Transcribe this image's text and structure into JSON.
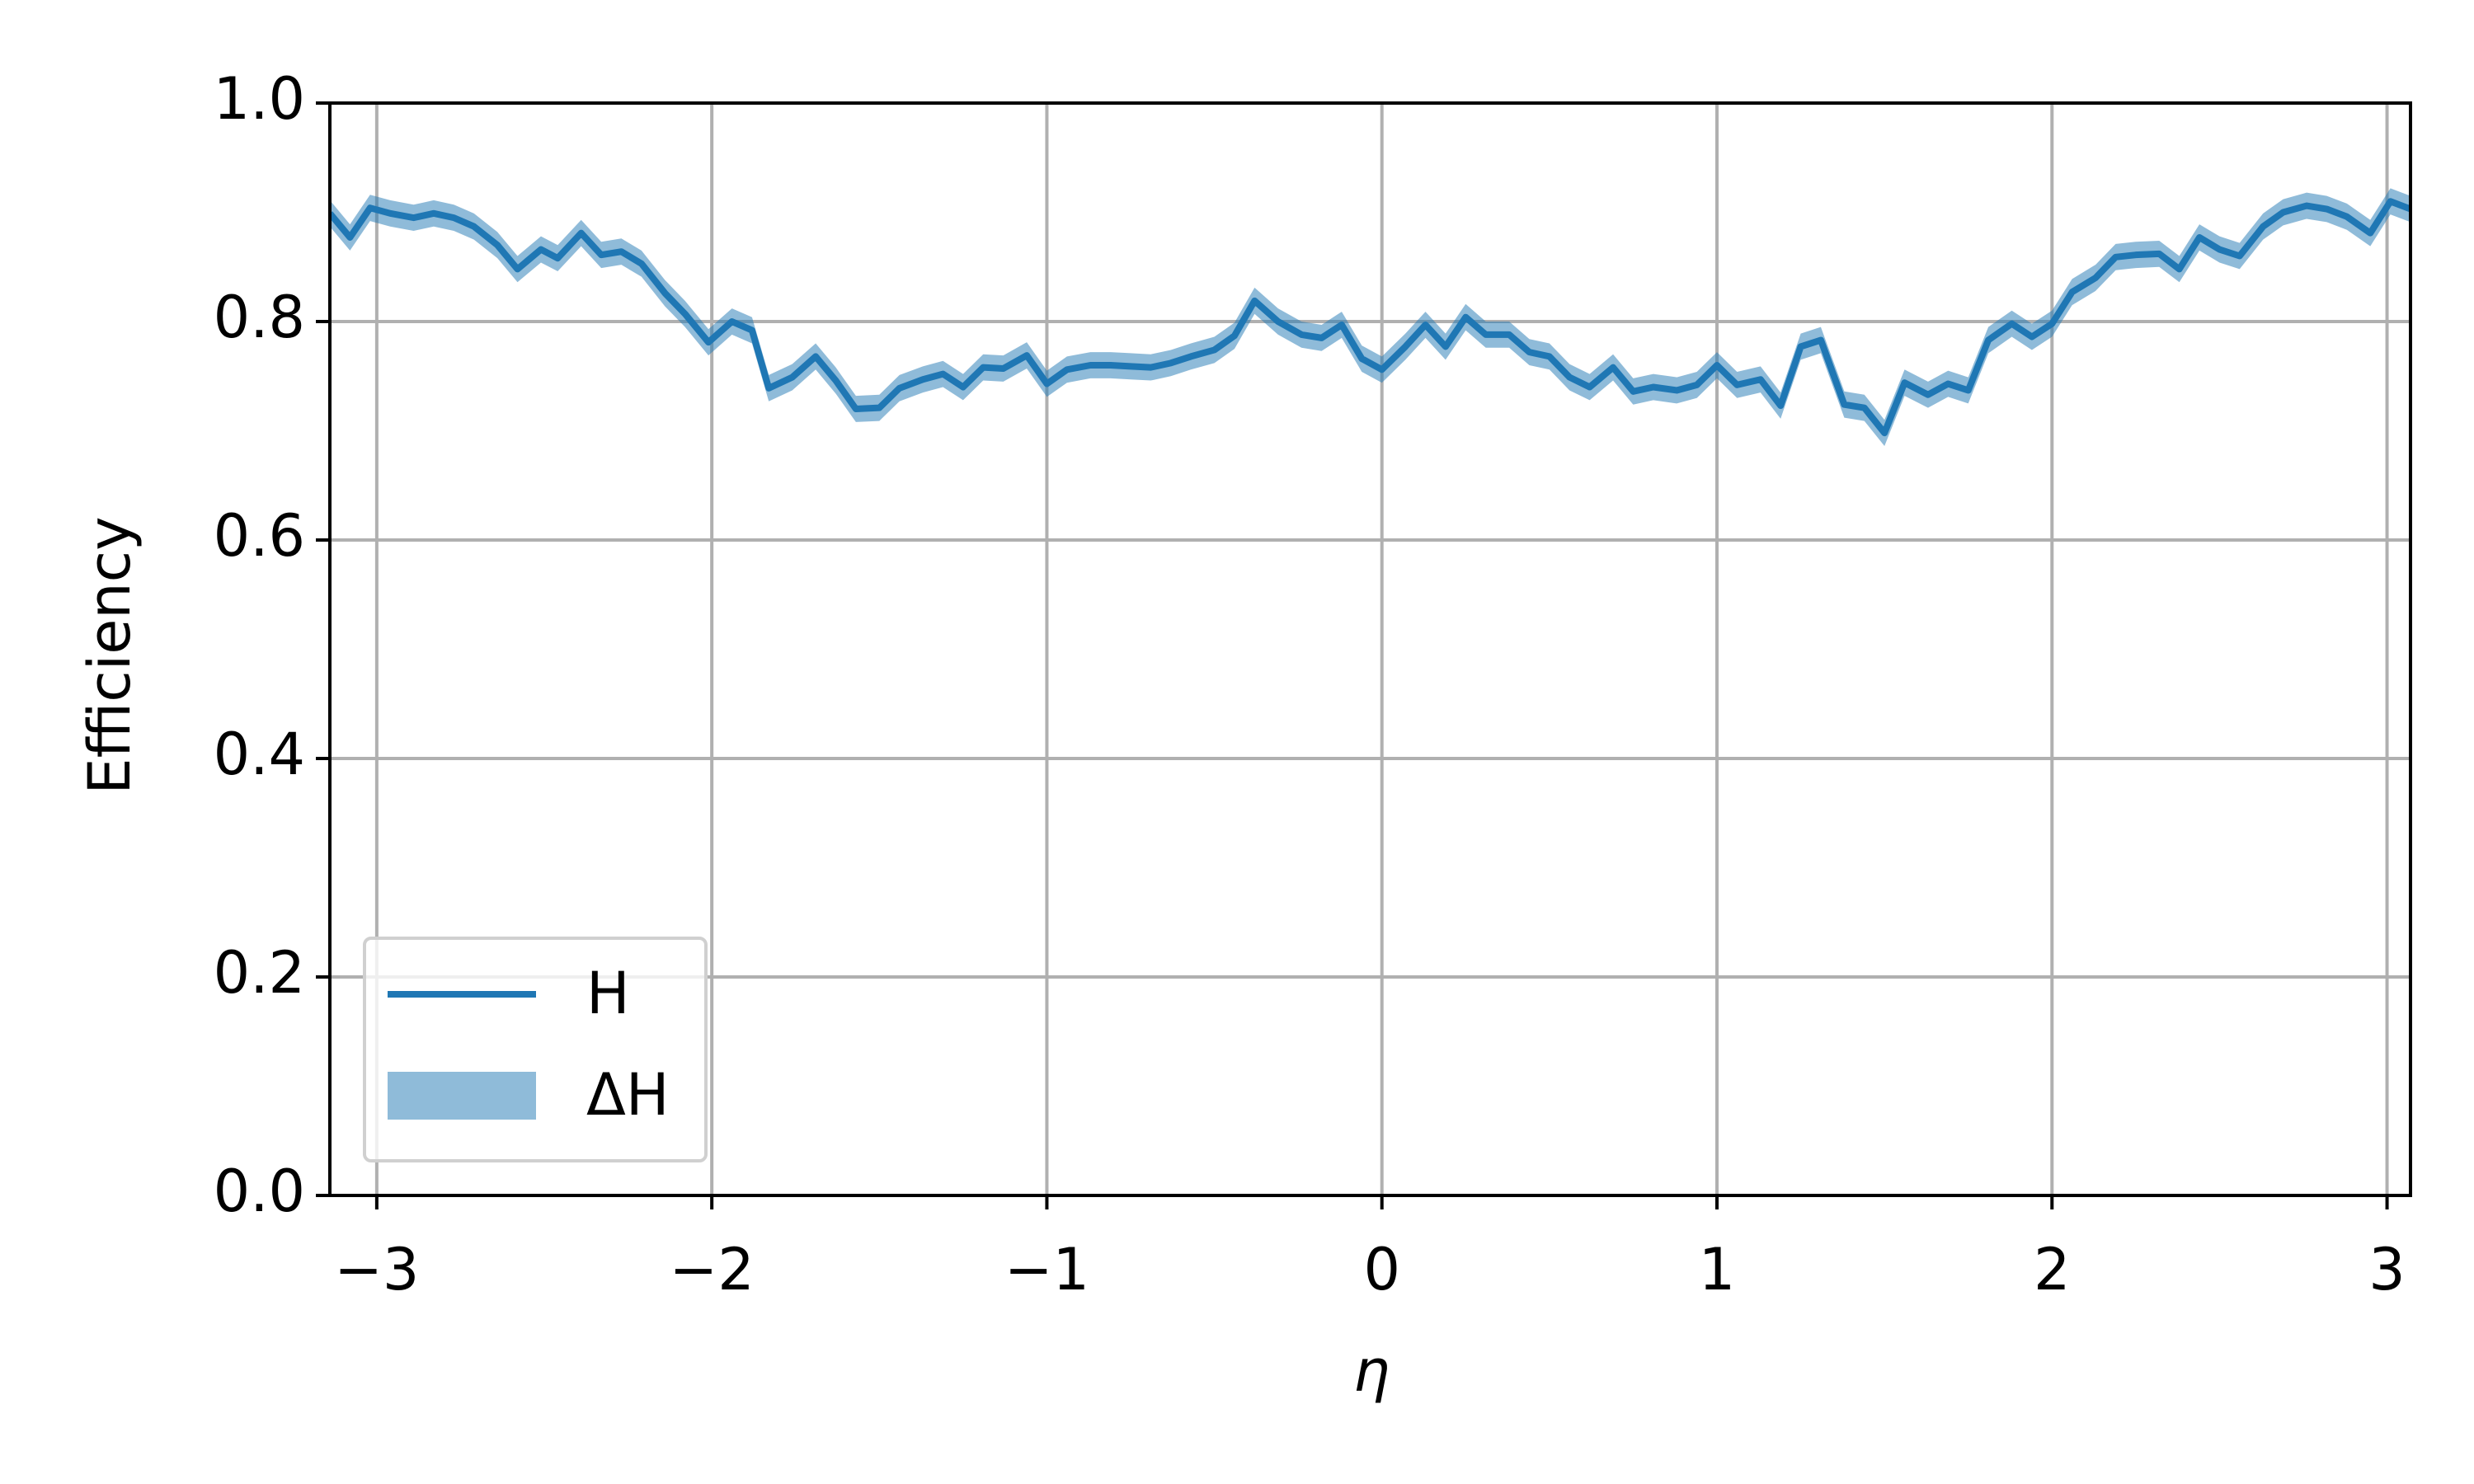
{
  "chart_data": {
    "type": "line",
    "xlabel": "η",
    "ylabel": "Efficiency",
    "xlim": [
      -3.14,
      3.07
    ],
    "ylim": [
      0,
      1
    ],
    "xticks": [
      -3,
      -2,
      -1,
      0,
      1,
      2,
      3
    ],
    "xtick_labels": [
      "−3",
      "−2",
      "−1",
      "0",
      "1",
      "2",
      "3"
    ],
    "yticks": [
      {
        "value": 0,
        "label": "0.0"
      },
      0.2,
      0.4,
      0.6,
      0.8,
      {
        "value": 1,
        "label": "1.0"
      }
    ],
    "grid": true,
    "legend": "lower left",
    "x": [
      -3.14,
      -3.08,
      -3.02,
      -2.96,
      -2.89,
      -2.83,
      -2.77,
      -2.71,
      -2.64,
      -2.58,
      -2.51,
      -2.46,
      -2.39,
      -2.33,
      -2.27,
      -2.21,
      -2.14,
      -2.08,
      -2.01,
      -1.94,
      -1.88,
      -1.83,
      -1.76,
      -1.69,
      -1.63,
      -1.57,
      -1.5,
      -1.44,
      -1.37,
      -1.31,
      -1.25,
      -1.19,
      -1.13,
      -1.06,
      -1,
      -0.94,
      -0.87,
      -0.81,
      -0.75,
      -0.69,
      -0.63,
      -0.57,
      -0.5,
      -0.44,
      -0.38,
      -0.31,
      -0.24,
      -0.18,
      -0.12,
      -0.06,
      0,
      0.07,
      0.13,
      0.19,
      0.25,
      0.31,
      0.38,
      0.44,
      0.5,
      0.56,
      0.62,
      0.69,
      0.75,
      0.81,
      0.88,
      0.94,
      1,
      1.06,
      1.13,
      1.19,
      1.25,
      1.31,
      1.38,
      1.44,
      1.5,
      1.56,
      1.63,
      1.69,
      1.75,
      1.81,
      1.88,
      1.94,
      2,
      2.06,
      2.13,
      2.19,
      2.25,
      2.32,
      2.38,
      2.44,
      2.5,
      2.56,
      2.63,
      2.69,
      2.76,
      2.82,
      2.88,
      2.95,
      3.01,
      3.07
    ],
    "series": [
      {
        "name": "H",
        "color": "#1f77b4",
        "values": [
          0.899,
          0.877,
          0.904,
          0.899,
          0.895,
          0.899,
          0.895,
          0.887,
          0.87,
          0.848,
          0.866,
          0.858,
          0.881,
          0.861,
          0.864,
          0.853,
          0.826,
          0.807,
          0.781,
          0.8,
          0.792,
          0.739,
          0.749,
          0.768,
          0.746,
          0.72,
          0.721,
          0.739,
          0.747,
          0.752,
          0.74,
          0.758,
          0.757,
          0.769,
          0.743,
          0.756,
          0.76,
          0.76,
          0.759,
          0.758,
          0.762,
          0.768,
          0.774,
          0.787,
          0.819,
          0.8,
          0.788,
          0.785,
          0.797,
          0.766,
          0.756,
          0.777,
          0.797,
          0.777,
          0.804,
          0.788,
          0.788,
          0.772,
          0.768,
          0.749,
          0.74,
          0.758,
          0.736,
          0.74,
          0.737,
          0.742,
          0.76,
          0.742,
          0.747,
          0.723,
          0.777,
          0.783,
          0.724,
          0.721,
          0.698,
          0.744,
          0.733,
          0.743,
          0.737,
          0.783,
          0.798,
          0.786,
          0.798,
          0.827,
          0.84,
          0.859,
          0.861,
          0.862,
          0.848,
          0.877,
          0.866,
          0.86,
          0.887,
          0.9,
          0.906,
          0.903,
          0.896,
          0.881,
          0.91,
          0.903
        ]
      },
      {
        "name": "ΔH",
        "color": "#1f77b4",
        "opacity": 0.5,
        "error": 0.012
      }
    ]
  }
}
